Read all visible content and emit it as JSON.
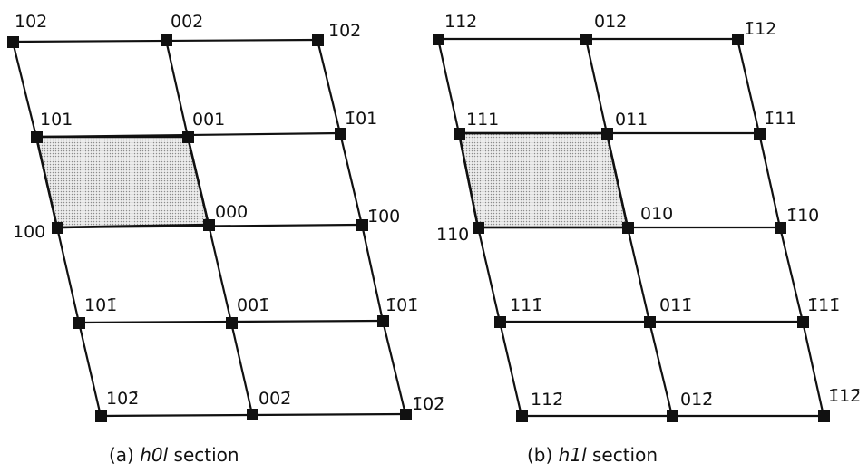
{
  "panel_a": {
    "labels": {
      "r0c0": "102",
      "r0c1": "002",
      "r0c2": "1̄02",
      "r1c0": "101",
      "r1c1": "001",
      "r1c2": "1̄01",
      "r2c0": "100",
      "r2c1": "000",
      "r2c2": "1̄00",
      "r3c0": "101̄",
      "r3c1": "001̄",
      "r3c2": "1̄01̄",
      "r4c0": "102̄",
      "r4c1": "002̄",
      "r4c2": "1̄02̄"
    },
    "caption": {
      "prefix": "(a) ",
      "italic": "h0l",
      "suffix": " section"
    }
  },
  "panel_b": {
    "labels": {
      "r0c0": "112",
      "r0c1": "012",
      "r0c2": "1̄12",
      "r1c0": "111",
      "r1c1": "011",
      "r1c2": "1̄11",
      "r2c0": "110",
      "r2c1": "010",
      "r2c2": "1̄10",
      "r3c0": "111̄",
      "r3c1": "011̄",
      "r3c2": "1̄11̄",
      "r4c0": "112̄",
      "r4c1": "012̄",
      "r4c2": "1̄12̄"
    },
    "caption": {
      "prefix": "(b) ",
      "italic": "h1l",
      "suffix": " section"
    }
  }
}
